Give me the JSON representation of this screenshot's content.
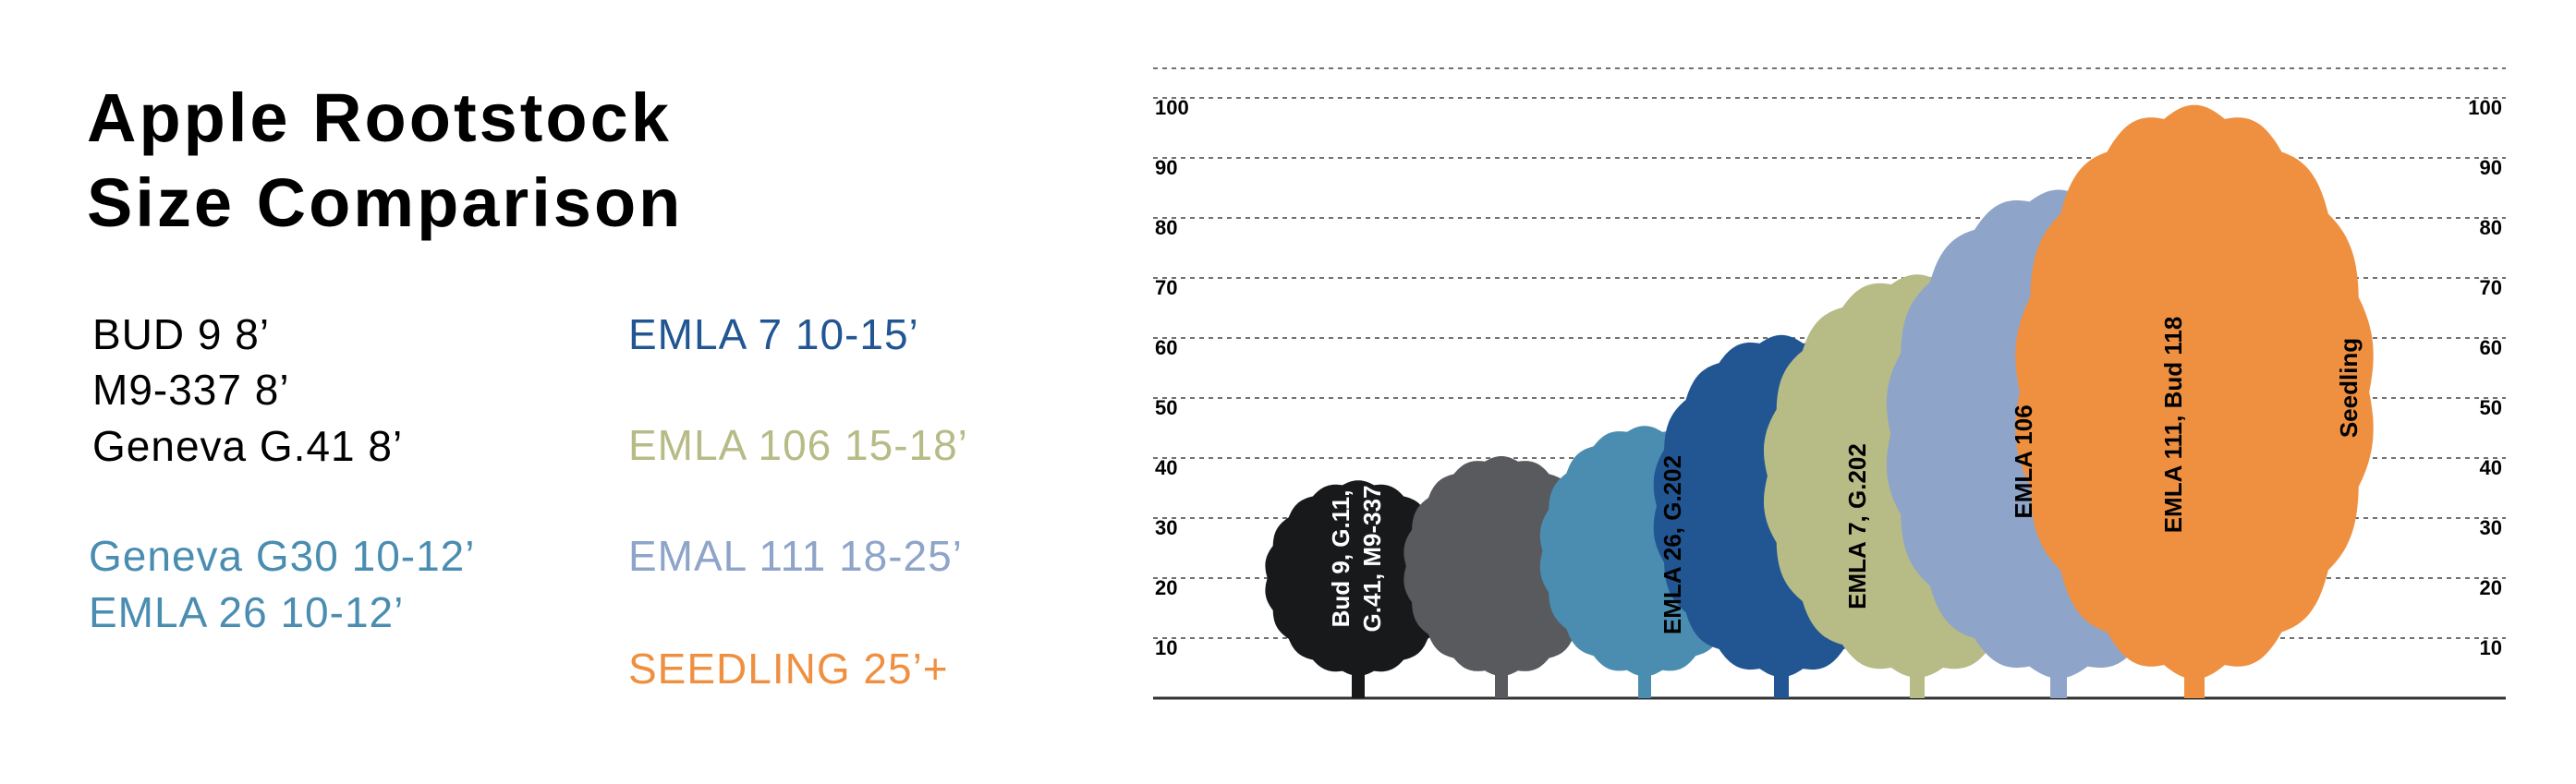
{
  "title_lines": [
    "Apple Rootstock",
    "Size Comparison"
  ],
  "legend": [
    {
      "text": "BUD 9  8’",
      "color": "#000000"
    },
    {
      "text": "M9-337  8’",
      "color": "#000000"
    },
    {
      "text": "Geneva G.41 8’",
      "color": "#000000"
    },
    {
      "text": "Geneva G30  10-12’",
      "color": "#4a8db1"
    },
    {
      "text": "EMLA 26 10-12’",
      "color": "#4a8db1"
    },
    {
      "text": "EMLA 7 10-15’",
      "color": "#215693"
    },
    {
      "text": "EMLA 106 15-18’",
      "color": "#b7bb86"
    },
    {
      "text": "EMAL 111 18-25’",
      "color": "#8ea4c9"
    },
    {
      "text": "SEEDLING  25’+",
      "color": "#ef9041"
    }
  ],
  "chart_data": {
    "type": "area",
    "ylim": [
      0,
      100
    ],
    "ticks": [
      10,
      20,
      30,
      40,
      50,
      60,
      70,
      80,
      90,
      100
    ],
    "grid": true,
    "series": [
      {
        "label_lines": [
          "Bud 9, G.11,",
          "G.41, M9-337"
        ],
        "label_color": "#ffffff",
        "color": "#17191b",
        "height": 36
      },
      {
        "label_lines": [],
        "label_color": "#ffffff",
        "color": "#585a5d",
        "height": 40
      },
      {
        "label_lines": [
          "EMLA 26, G.202"
        ],
        "label_color": "#000000",
        "color": "#4a8db1",
        "height": 45
      },
      {
        "label_lines": [
          "EMLA 7, G.202"
        ],
        "label_color": "#000000",
        "color": "#215693",
        "height": 60
      },
      {
        "label_lines": [
          "EMLA 106"
        ],
        "label_color": "#000000",
        "color": "#b7bb86",
        "height": 70
      },
      {
        "label_lines": [
          "EMLA 111, Bud 118"
        ],
        "label_color": "#000000",
        "color": "#8ea4c9",
        "height": 84
      },
      {
        "label_lines": [
          "Seedling"
        ],
        "label_color": "#000000",
        "color": "#ef9041",
        "height": 98
      }
    ]
  }
}
